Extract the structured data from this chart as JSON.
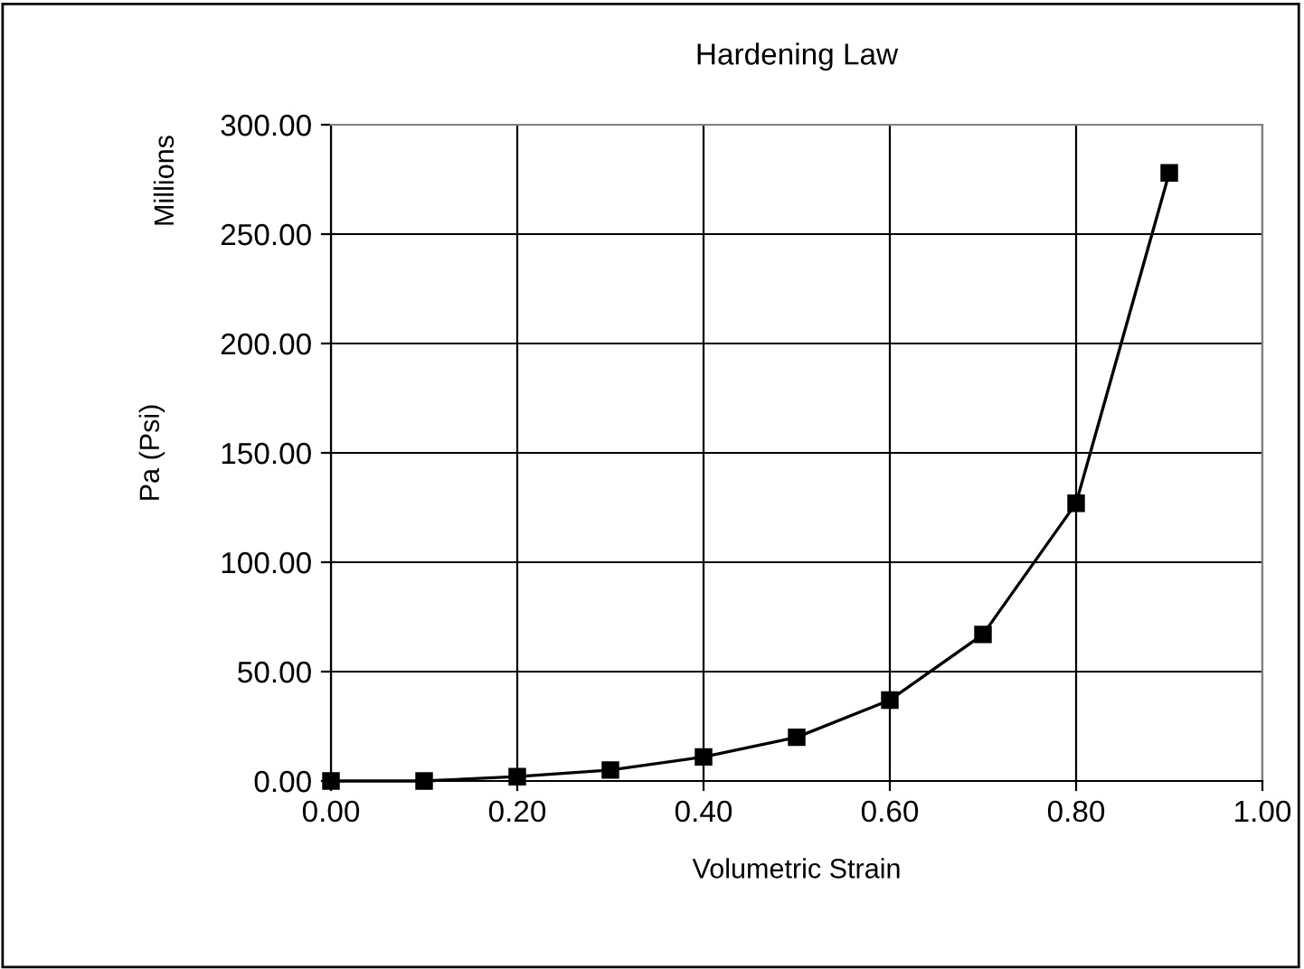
{
  "chart_data": {
    "type": "line",
    "title": "Hardening Law",
    "xlabel": "Volumetric Strain",
    "ylabel": "Pa (Psi)",
    "annotations": [
      "Millions"
    ],
    "x": [
      0.0,
      0.1,
      0.2,
      0.3,
      0.4,
      0.5,
      0.6,
      0.7,
      0.8,
      0.9
    ],
    "series": [
      {
        "color": "#000000",
        "values": [
          0,
          0,
          2,
          5,
          11,
          20,
          37,
          67,
          127,
          278
        ]
      }
    ],
    "xlim": [
      0,
      1
    ],
    "xticks": [
      {
        "value": 0,
        "label": "0.00"
      },
      {
        "value": 0.2,
        "label": "0.20"
      },
      {
        "value": 0.4,
        "label": "0.40"
      },
      {
        "value": 0.6,
        "label": "0.60"
      },
      {
        "value": 0.8,
        "label": "0.80"
      },
      {
        "value": 1,
        "label": "1.00"
      }
    ],
    "ylim": [
      0,
      300
    ],
    "yticks": [
      {
        "value": 0,
        "label": "0.00"
      },
      {
        "value": 50,
        "label": "50.00"
      },
      {
        "value": 100,
        "label": "100.00"
      },
      {
        "value": 150,
        "label": "150.00"
      },
      {
        "value": 200,
        "label": "200.00"
      },
      {
        "value": 250,
        "label": "250.00"
      },
      {
        "value": 300,
        "label": "300.00"
      }
    ],
    "grid": true,
    "marker": "square",
    "line_style": "solid"
  }
}
